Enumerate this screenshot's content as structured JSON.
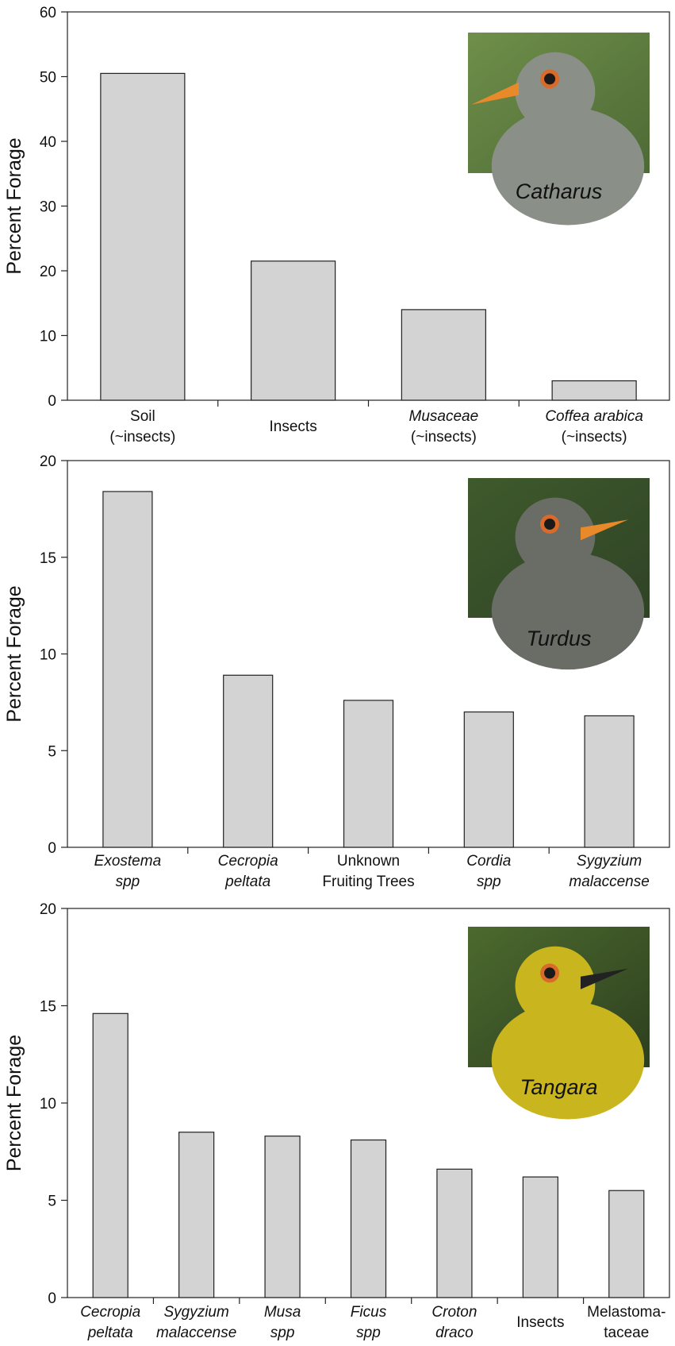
{
  "chart_data": [
    {
      "type": "bar",
      "title": "",
      "genus": "Catharus",
      "photo_icon": "catharus-bird-photo",
      "xlabel": "",
      "ylabel": "Percent Forage",
      "ylim": [
        0,
        60
      ],
      "yticks": [
        0,
        10,
        20,
        30,
        40,
        50,
        60
      ],
      "categories": [
        {
          "lines": [
            "Soil",
            "(~insects)"
          ],
          "italic": [
            false,
            false
          ]
        },
        {
          "lines": [
            "Insects"
          ],
          "italic": [
            false
          ]
        },
        {
          "lines": [
            "Musaceae",
            "(~insects)"
          ],
          "italic": [
            true,
            false
          ]
        },
        {
          "lines": [
            "Coffea arabica",
            "(~insects)"
          ],
          "italic": [
            true,
            false
          ]
        }
      ],
      "values": [
        50.5,
        21.5,
        14,
        3
      ]
    },
    {
      "type": "bar",
      "title": "",
      "genus": "Turdus",
      "photo_icon": "turdus-bird-photo",
      "xlabel": "",
      "ylabel": "Percent Forage",
      "ylim": [
        0,
        20
      ],
      "yticks": [
        0,
        5,
        10,
        15,
        20
      ],
      "categories": [
        {
          "lines": [
            "Exostema",
            "spp"
          ],
          "italic": [
            true,
            true
          ]
        },
        {
          "lines": [
            "Cecropia",
            "peltata"
          ],
          "italic": [
            true,
            true
          ]
        },
        {
          "lines": [
            "Unknown",
            "Fruiting Trees"
          ],
          "italic": [
            false,
            false
          ]
        },
        {
          "lines": [
            "Cordia",
            "spp"
          ],
          "italic": [
            true,
            true
          ]
        },
        {
          "lines": [
            "Sygyzium",
            "malaccense"
          ],
          "italic": [
            true,
            true
          ]
        }
      ],
      "values": [
        18.4,
        8.9,
        7.6,
        7.0,
        6.8
      ]
    },
    {
      "type": "bar",
      "title": "",
      "genus": "Tangara",
      "photo_icon": "tangara-bird-photo",
      "xlabel": "",
      "ylabel": "Percent Forage",
      "ylim": [
        0,
        20
      ],
      "yticks": [
        0,
        5,
        10,
        15,
        20
      ],
      "categories": [
        {
          "lines": [
            "Cecropia",
            "peltata"
          ],
          "italic": [
            true,
            true
          ]
        },
        {
          "lines": [
            "Sygyzium",
            "malaccense"
          ],
          "italic": [
            true,
            true
          ]
        },
        {
          "lines": [
            "Musa",
            "spp"
          ],
          "italic": [
            true,
            true
          ]
        },
        {
          "lines": [
            "Ficus",
            "spp"
          ],
          "italic": [
            true,
            true
          ]
        },
        {
          "lines": [
            "Croton",
            "draco"
          ],
          "italic": [
            true,
            true
          ]
        },
        {
          "lines": [
            "Insects"
          ],
          "italic": [
            false
          ]
        },
        {
          "lines": [
            "Melastoma-",
            "taceae"
          ],
          "italic": [
            false,
            false
          ]
        }
      ],
      "values": [
        14.6,
        8.5,
        8.3,
        8.1,
        6.6,
        6.2,
        5.5
      ]
    }
  ]
}
